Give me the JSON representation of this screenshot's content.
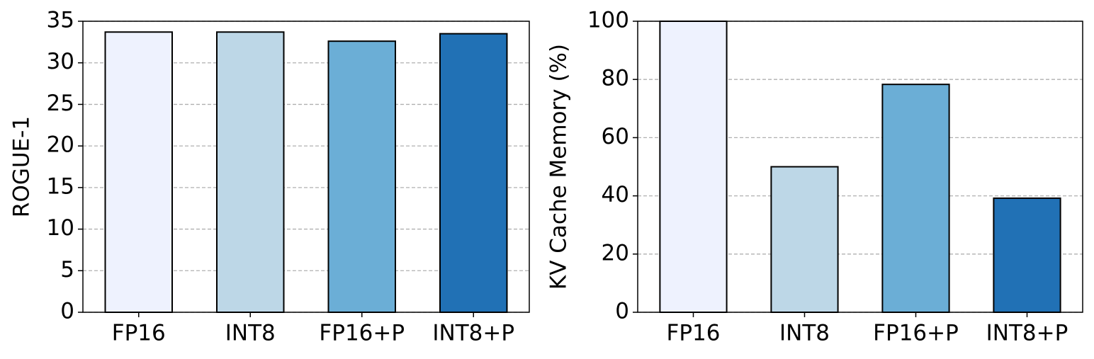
{
  "chart_data": [
    {
      "type": "bar",
      "ylabel": "ROGUE-1",
      "categories": [
        "FP16",
        "INT8",
        "FP16+P",
        "INT8+P"
      ],
      "values": [
        33.7,
        33.7,
        32.6,
        33.5
      ],
      "colors": [
        "#eef2fe",
        "#bdd7e7",
        "#6baed6",
        "#2171b5"
      ],
      "ylim": [
        0,
        35
      ],
      "yticks": [
        0,
        5,
        10,
        15,
        20,
        25,
        30,
        35
      ],
      "grid": true
    },
    {
      "type": "bar",
      "ylabel": "KV Cache Memory (%)",
      "categories": [
        "FP16",
        "INT8",
        "FP16+P",
        "INT8+P"
      ],
      "values": [
        100,
        50,
        78.3,
        39.2
      ],
      "colors": [
        "#eef2fe",
        "#bdd7e7",
        "#6baed6",
        "#2171b5"
      ],
      "ylim": [
        0,
        100
      ],
      "yticks": [
        0,
        20,
        40,
        60,
        80,
        100
      ],
      "grid": true
    }
  ]
}
